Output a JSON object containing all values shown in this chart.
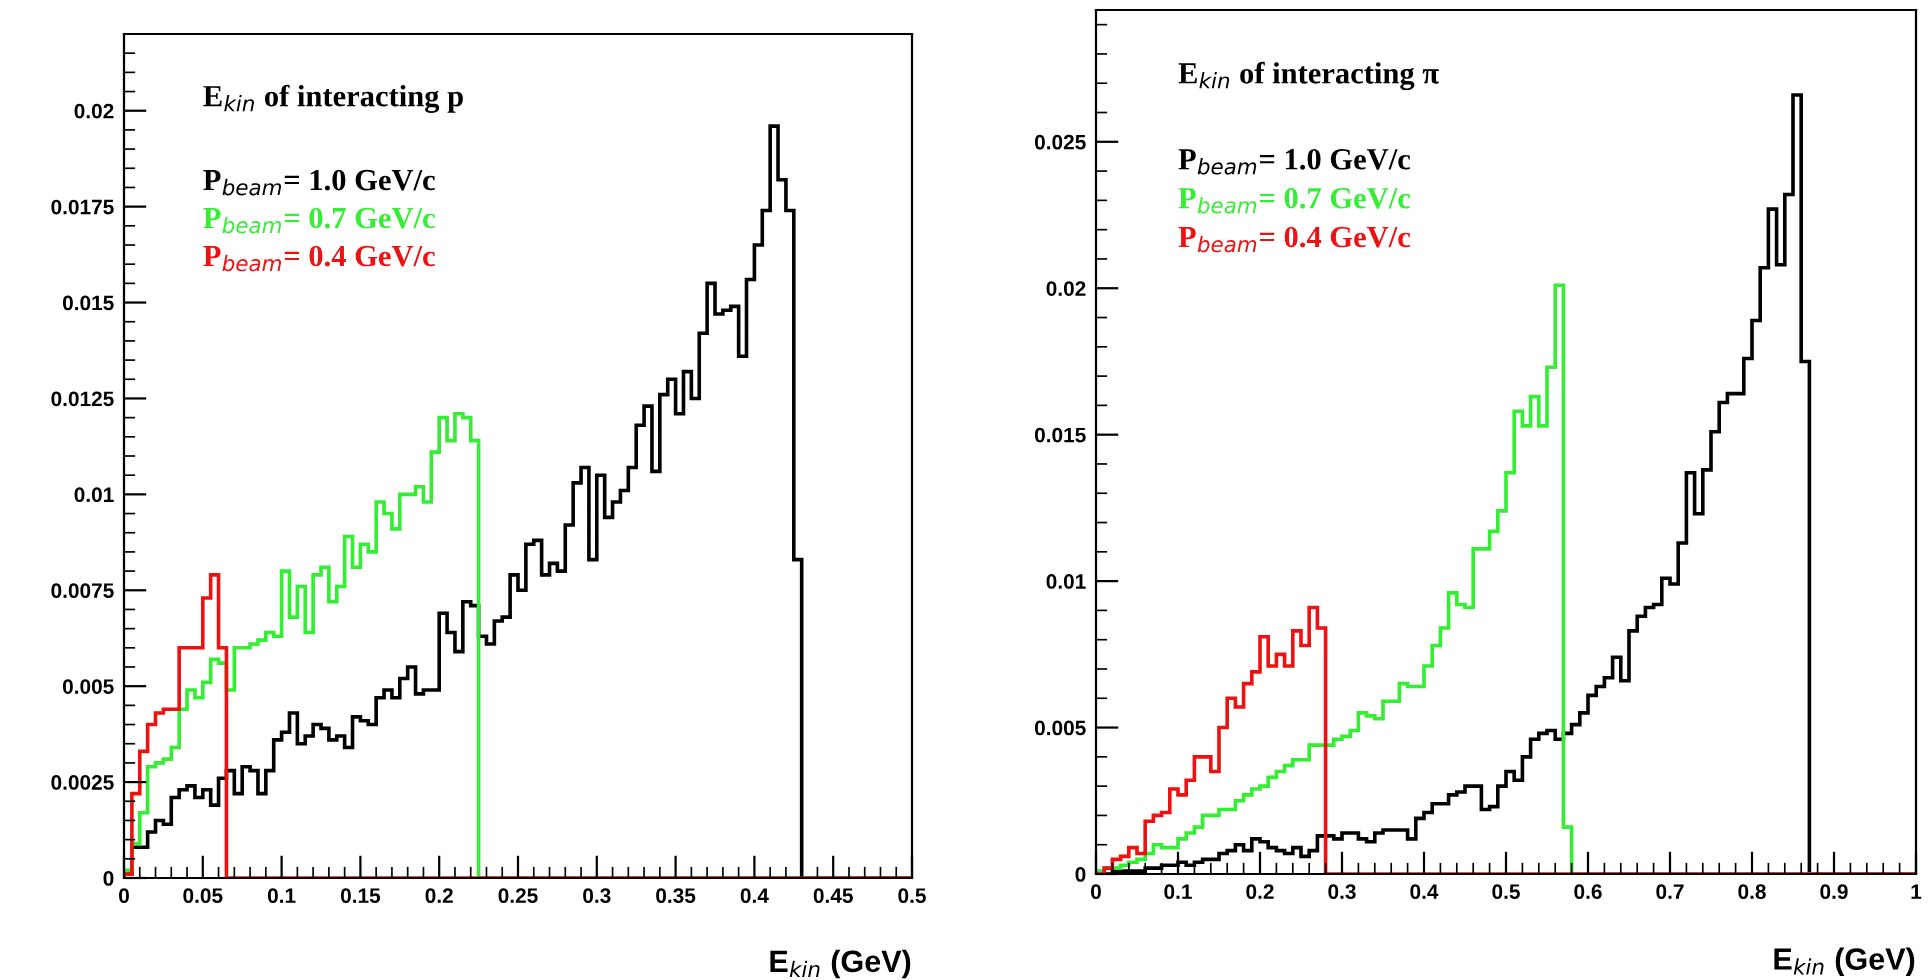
{
  "chart_data": [
    {
      "type": "histogram",
      "xlabel": "E$_{kin}$ (GeV)",
      "annotations": [
        "E$_{kin}$ of interacting p"
      ],
      "legend": "top left",
      "bins": [
        0,
        0.005,
        0.01,
        0.015,
        0.02,
        0.025,
        0.03,
        0.035,
        0.04,
        0.045,
        0.05,
        0.055,
        0.06,
        0.065,
        0.07,
        0.075,
        0.08,
        0.085,
        0.09,
        0.095,
        0.1,
        0.105,
        0.11,
        0.115,
        0.12,
        0.125,
        0.13,
        0.135,
        0.14,
        0.145,
        0.15,
        0.155,
        0.16,
        0.165,
        0.17,
        0.175,
        0.18,
        0.185,
        0.19,
        0.195,
        0.2,
        0.205,
        0.21,
        0.215,
        0.22,
        0.225,
        0.23,
        0.235,
        0.24,
        0.245,
        0.25,
        0.255,
        0.26,
        0.265,
        0.27,
        0.275,
        0.28,
        0.285,
        0.29,
        0.295,
        0.3,
        0.305,
        0.31,
        0.315,
        0.32,
        0.325,
        0.33,
        0.335,
        0.34,
        0.345,
        0.35,
        0.355,
        0.36,
        0.365,
        0.37,
        0.375,
        0.38,
        0.385,
        0.39,
        0.395,
        0.4,
        0.405,
        0.41,
        0.415,
        0.42,
        0.425,
        0.43,
        0.435,
        0.44,
        0.445,
        0.45,
        0.455,
        0.46,
        0.465,
        0.47,
        0.475,
        0.48,
        0.485,
        0.49,
        0.495,
        0.5
      ],
      "series": [
        {
          "name": "P$_{beam}$= 1.0 GeV/c",
          "color": "#000000",
          "values": [
            0.0001,
            0.0008,
            0.0008,
            0.0012,
            0.0015,
            0.0014,
            0.0021,
            0.0023,
            0.0024,
            0.0021,
            0.0023,
            0.0019,
            0.0026,
            0.0028,
            0.0022,
            0.0029,
            0.0028,
            0.0022,
            0.0028,
            0.0036,
            0.0038,
            0.0043,
            0.0035,
            0.0037,
            0.004,
            0.0039,
            0.0036,
            0.0037,
            0.0034,
            0.0042,
            0.0041,
            0.004,
            0.0047,
            0.0049,
            0.0047,
            0.0052,
            0.0055,
            0.0048,
            0.0049,
            0.0049,
            0.0069,
            0.0064,
            0.0059,
            0.0072,
            0.0071,
            0.0063,
            0.0061,
            0.0067,
            0.0068,
            0.0079,
            0.0075,
            0.0087,
            0.0088,
            0.0079,
            0.0082,
            0.008,
            0.0092,
            0.0103,
            0.0107,
            0.0083,
            0.0105,
            0.0094,
            0.0098,
            0.0101,
            0.0107,
            0.0118,
            0.0123,
            0.0106,
            0.0126,
            0.013,
            0.0121,
            0.0132,
            0.0125,
            0.0142,
            0.0155,
            0.0147,
            0.0148,
            0.0149,
            0.0136,
            0.0156,
            0.0165,
            0.0174,
            0.0196,
            0.0182,
            0.0174,
            0.0083,
            0,
            0,
            0,
            0,
            0,
            0,
            0,
            0,
            0,
            0,
            0,
            0,
            0,
            0
          ]
        },
        {
          "name": "P$_{beam}$= 0.7 GeV/c",
          "color": "#33ee33",
          "values": [
            0.0002,
            0.0009,
            0.0017,
            0.0029,
            0.003,
            0.0031,
            0.0034,
            0.0044,
            0.0049,
            0.0047,
            0.0051,
            0.0057,
            0.0056,
            0.0049,
            0.006,
            0.006,
            0.0061,
            0.0062,
            0.0064,
            0.0063,
            0.008,
            0.0068,
            0.0076,
            0.0064,
            0.0079,
            0.0081,
            0.0072,
            0.0076,
            0.0089,
            0.0081,
            0.0087,
            0.0085,
            0.0098,
            0.0095,
            0.0091,
            0.01,
            0.01,
            0.0102,
            0.0098,
            0.0111,
            0.012,
            0.0114,
            0.0121,
            0.012,
            0.0114,
            0,
            0,
            0,
            0,
            0,
            0,
            0,
            0,
            0,
            0,
            0,
            0,
            0,
            0,
            0,
            0,
            0,
            0,
            0,
            0,
            0,
            0,
            0,
            0,
            0,
            0,
            0,
            0,
            0,
            0,
            0,
            0,
            0,
            0,
            0,
            0,
            0,
            0,
            0,
            0,
            0,
            0,
            0,
            0,
            0,
            0,
            0,
            0,
            0,
            0,
            0,
            0,
            0,
            0,
            0
          ]
        },
        {
          "name": "P$_{beam}$= 0.4 GeV/c",
          "color": "#ee1111",
          "values": [
            0.0001,
            0.0022,
            0.0033,
            0.004,
            0.0043,
            0.0044,
            0.0044,
            0.006,
            0.006,
            0.006,
            0.0073,
            0.0079,
            0.006,
            0,
            0,
            0,
            0,
            0,
            0,
            0,
            0,
            0,
            0,
            0,
            0,
            0,
            0,
            0,
            0,
            0,
            0,
            0,
            0,
            0,
            0,
            0,
            0,
            0,
            0,
            0,
            0,
            0,
            0,
            0,
            0,
            0,
            0,
            0,
            0,
            0,
            0,
            0,
            0,
            0,
            0,
            0,
            0,
            0,
            0,
            0,
            0,
            0,
            0,
            0,
            0,
            0,
            0,
            0,
            0,
            0,
            0,
            0,
            0,
            0,
            0,
            0,
            0,
            0,
            0,
            0,
            0,
            0,
            0,
            0,
            0,
            0,
            0,
            0,
            0,
            0,
            0,
            0,
            0,
            0,
            0,
            0,
            0,
            0,
            0,
            0
          ]
        }
      ],
      "xlim": [
        0,
        0.5
      ],
      "xticks": [
        0,
        0.05,
        0.1,
        0.15,
        0.2,
        0.25,
        0.3,
        0.35,
        0.4,
        0.45,
        0.5
      ],
      "ylim": [
        0,
        0.022
      ],
      "yticks": [
        0,
        0.0025,
        0.005,
        0.0075,
        0.01,
        0.0125,
        0.015,
        0.0175,
        0.02
      ]
    },
    {
      "type": "histogram",
      "xlabel": "E$_{kin}$ (GeV)",
      "annotations": [
        "E$_{kin}$ of interacting π"
      ],
      "legend": "top left",
      "bins": [
        0,
        0.01,
        0.02,
        0.03,
        0.04,
        0.05,
        0.06,
        0.07,
        0.08,
        0.09,
        0.1,
        0.11,
        0.12,
        0.13,
        0.14,
        0.15,
        0.16,
        0.17,
        0.18,
        0.19,
        0.2,
        0.21,
        0.22,
        0.23,
        0.24,
        0.25,
        0.26,
        0.27,
        0.28,
        0.29,
        0.3,
        0.31,
        0.32,
        0.33,
        0.34,
        0.35,
        0.36,
        0.37,
        0.38,
        0.39,
        0.4,
        0.41,
        0.42,
        0.43,
        0.44,
        0.45,
        0.46,
        0.47,
        0.48,
        0.49,
        0.5,
        0.51,
        0.52,
        0.53,
        0.54,
        0.55,
        0.56,
        0.57,
        0.58,
        0.59,
        0.6,
        0.61,
        0.62,
        0.63,
        0.64,
        0.65,
        0.66,
        0.67,
        0.68,
        0.69,
        0.7,
        0.71,
        0.72,
        0.73,
        0.74,
        0.75,
        0.76,
        0.77,
        0.78,
        0.79,
        0.8,
        0.81,
        0.82,
        0.83,
        0.84,
        0.85,
        0.86,
        0.87,
        0.88,
        0.89,
        0.9,
        0.91,
        0.92,
        0.93,
        0.94,
        0.95,
        0.96,
        0.97,
        0.98,
        0.99,
        1
      ],
      "series": [
        {
          "name": "P$_{beam}$= 1.0 GeV/c",
          "color": "#000000",
          "values": [
            0,
            0,
            0.0001,
            0.0001,
            0.0001,
            0.0001,
            0.0002,
            0.0002,
            0.0003,
            0.0003,
            0.0004,
            0.0003,
            0.0004,
            0.0005,
            0.0005,
            0.0007,
            0.0008,
            0.001,
            0.0008,
            0.0012,
            0.0011,
            0.0009,
            0.0008,
            0.0007,
            0.0009,
            0.0006,
            0.0008,
            0.0013,
            0.0013,
            0.0012,
            0.0014,
            0.0014,
            0.0012,
            0.0011,
            0.0014,
            0.0015,
            0.0015,
            0.0015,
            0.0012,
            0.0019,
            0.0021,
            0.0024,
            0.0024,
            0.0027,
            0.0028,
            0.003,
            0.003,
            0.0022,
            0.0023,
            0.003,
            0.0035,
            0.0032,
            0.004,
            0.0046,
            0.0048,
            0.0049,
            0.0046,
            0.0048,
            0.0051,
            0.0055,
            0.0061,
            0.0064,
            0.0067,
            0.0074,
            0.0066,
            0.0083,
            0.0088,
            0.0091,
            0.0092,
            0.0101,
            0.0099,
            0.0113,
            0.0137,
            0.0123,
            0.0138,
            0.0151,
            0.0161,
            0.0164,
            0.0164,
            0.0176,
            0.0189,
            0.0207,
            0.0227,
            0.0208,
            0.0232,
            0.0266,
            0.0175,
            0,
            0,
            0,
            0,
            0,
            0,
            0,
            0,
            0,
            0,
            0,
            0,
            0
          ]
        },
        {
          "name": "P$_{beam}$= 0.7 GeV/c",
          "color": "#33ee33",
          "values": [
            0.0001,
            0.0002,
            0.0002,
            0.0003,
            0.0004,
            0.0005,
            0.0007,
            0.001,
            0.0009,
            0.0009,
            0.0012,
            0.0014,
            0.0016,
            0.002,
            0.002,
            0.0022,
            0.0022,
            0.0025,
            0.0027,
            0.0029,
            0.003,
            0.0033,
            0.0035,
            0.0037,
            0.0039,
            0.0039,
            0.0044,
            0.0044,
            0.0044,
            0.0046,
            0.0047,
            0.0049,
            0.0055,
            0.0054,
            0.0053,
            0.0059,
            0.0059,
            0.0065,
            0.0064,
            0.0064,
            0.0071,
            0.0078,
            0.0084,
            0.0096,
            0.0092,
            0.0091,
            0.0111,
            0.0111,
            0.0117,
            0.0124,
            0.0137,
            0.0158,
            0.0153,
            0.0163,
            0.0153,
            0.0173,
            0.0201,
            0.0016,
            0,
            0,
            0,
            0,
            0,
            0,
            0,
            0,
            0,
            0,
            0,
            0,
            0,
            0,
            0,
            0,
            0,
            0,
            0,
            0,
            0,
            0,
            0,
            0,
            0,
            0,
            0,
            0,
            0,
            0,
            0,
            0,
            0,
            0,
            0,
            0,
            0,
            0,
            0,
            0,
            0,
            0
          ]
        },
        {
          "name": "P$_{beam}$= 0.4 GeV/c",
          "color": "#ee1111",
          "values": [
            0,
            0.0002,
            0.0005,
            0.0006,
            0.0009,
            0.0007,
            0.0018,
            0.002,
            0.0021,
            0.0029,
            0.0027,
            0.0032,
            0.004,
            0.004,
            0.0035,
            0.005,
            0.006,
            0.0057,
            0.0065,
            0.0069,
            0.0081,
            0.0071,
            0.0075,
            0.0071,
            0.0083,
            0.0078,
            0.0091,
            0.0084,
            0,
            0,
            0,
            0,
            0,
            0,
            0,
            0,
            0,
            0,
            0,
            0,
            0,
            0,
            0,
            0,
            0,
            0,
            0,
            0,
            0,
            0,
            0,
            0,
            0,
            0,
            0,
            0,
            0,
            0,
            0,
            0,
            0,
            0,
            0,
            0,
            0,
            0,
            0,
            0,
            0,
            0,
            0,
            0,
            0,
            0,
            0,
            0,
            0,
            0,
            0,
            0,
            0,
            0,
            0,
            0,
            0,
            0,
            0,
            0,
            0,
            0,
            0,
            0,
            0,
            0,
            0,
            0,
            0,
            0,
            0,
            0
          ]
        }
      ],
      "xlim": [
        0,
        1
      ],
      "xticks": [
        0,
        0.1,
        0.2,
        0.3,
        0.4,
        0.5,
        0.6,
        0.7,
        0.8,
        0.9,
        1
      ],
      "ylim": [
        0,
        0.0295
      ],
      "yticks": [
        0,
        0.005,
        0.01,
        0.015,
        0.02,
        0.025
      ]
    }
  ]
}
